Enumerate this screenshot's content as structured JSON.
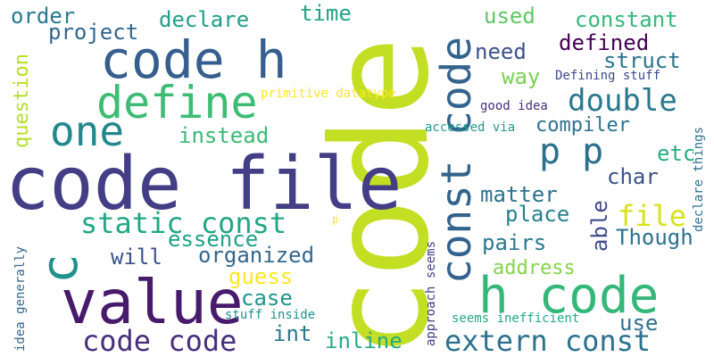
{
  "words": [
    {
      "text": "code",
      "color": "#c2df23"
    },
    {
      "text": "code file",
      "color": "#433e85"
    },
    {
      "text": "value",
      "color": "#481a6c"
    },
    {
      "text": "code h",
      "color": "#355f8d"
    },
    {
      "text": "define",
      "color": "#3dbc74"
    },
    {
      "text": "h code",
      "color": "#35b779"
    },
    {
      "text": "const code",
      "color": "#33638d"
    },
    {
      "text": "one",
      "color": "#23888e"
    },
    {
      "text": "code code",
      "color": "#472f7d"
    },
    {
      "text": "extern const",
      "color": "#2c718e"
    },
    {
      "text": "static const",
      "color": "#22a785"
    },
    {
      "text": "c",
      "color": "#21918c"
    },
    {
      "text": "p p",
      "color": "#2d708e"
    },
    {
      "text": "double",
      "color": "#2a788e"
    },
    {
      "text": "file",
      "color": "#d8e219"
    },
    {
      "text": "order",
      "color": "#2a788e"
    },
    {
      "text": "declare",
      "color": "#1f9e89"
    },
    {
      "text": "time",
      "color": "#20a386"
    },
    {
      "text": "used",
      "color": "#5ec962"
    },
    {
      "text": "constant",
      "color": "#37b878"
    },
    {
      "text": "project",
      "color": "#31668e"
    },
    {
      "text": "defined",
      "color": "#440154"
    },
    {
      "text": "struct",
      "color": "#2c738e"
    },
    {
      "text": "need",
      "color": "#3b528b"
    },
    {
      "text": "way",
      "color": "#7ad151"
    },
    {
      "text": "Defining stuff",
      "color": "#3e4989"
    },
    {
      "text": "primitive datatype",
      "color": "#fde725"
    },
    {
      "text": "question",
      "color": "#b5de2b"
    },
    {
      "text": "good idea",
      "color": "#472d7b"
    },
    {
      "text": "compiler",
      "color": "#2c728e"
    },
    {
      "text": "instead",
      "color": "#3aba76"
    },
    {
      "text": "accessed via",
      "color": "#1f9a8a"
    },
    {
      "text": "declare things",
      "color": "#2d708e"
    },
    {
      "text": "etc",
      "color": "#27ad81"
    },
    {
      "text": "char",
      "color": "#3b528b"
    },
    {
      "text": "matter",
      "color": "#2c718e"
    },
    {
      "text": "place",
      "color": "#26828e"
    },
    {
      "text": "essence",
      "color": "#1fa187"
    },
    {
      "text": "able",
      "color": "#3e4a89"
    },
    {
      "text": "Though",
      "color": "#2c728e"
    },
    {
      "text": "pairs",
      "color": "#2a788e"
    },
    {
      "text": "will",
      "color": "#3b528b"
    },
    {
      "text": "organized",
      "color": "#31678e"
    },
    {
      "text": "address",
      "color": "#84d44b"
    },
    {
      "text": "guess",
      "color": "#fde725"
    },
    {
      "text": "case",
      "color": "#1f948c"
    },
    {
      "text": "p",
      "color": "#fde725"
    },
    {
      "text": "approach seems",
      "color": "#424086"
    },
    {
      "text": "use",
      "color": "#2c728e"
    },
    {
      "text": "stuff inside",
      "color": "#21918c"
    },
    {
      "text": "int",
      "color": "#2a788e"
    },
    {
      "text": "inline",
      "color": "#25ab82"
    },
    {
      "text": "seems inefficient",
      "color": "#22a785"
    },
    {
      "text": "idea generally",
      "color": "#31668e"
    }
  ]
}
